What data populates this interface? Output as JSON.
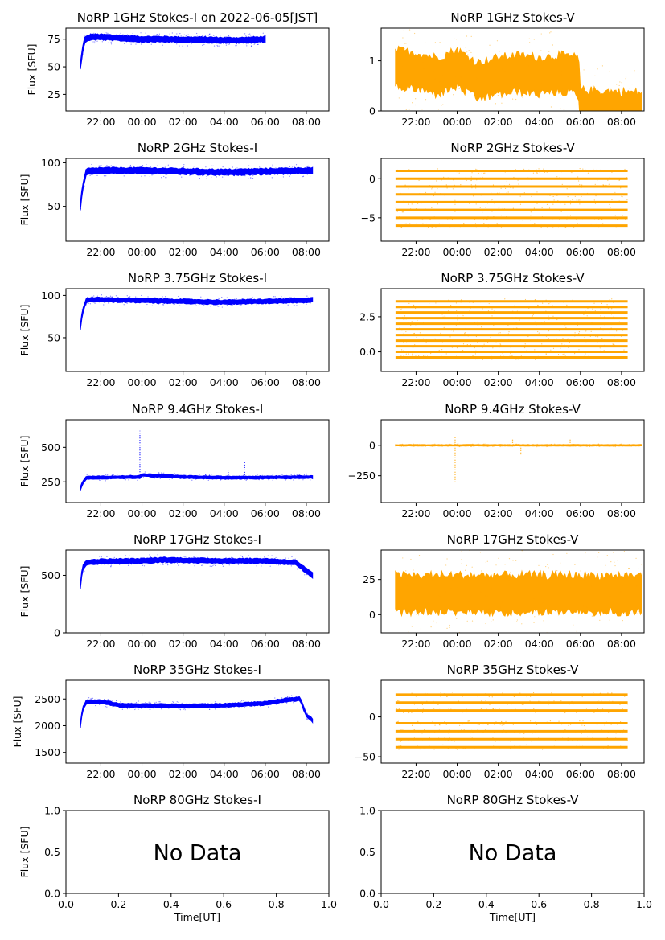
{
  "figure": {
    "time_ticks": [
      "22:00",
      "00:00",
      "02:00",
      "04:00",
      "06:00",
      "08:00"
    ],
    "xlabel": "Time[UT]",
    "ylabel": "Flux [SFU]",
    "no_data_text": "No Data"
  },
  "chart_data": [
    {
      "type": "scatter",
      "title": "NoRP 1GHz Stokes-I on 2022-06-05[JST]",
      "color": "#0000ff",
      "ylabel": "Flux [SFU]",
      "xlim": [
        20.3,
        33.1
      ],
      "ylim": [
        10,
        85
      ],
      "yticks": [
        25,
        50,
        75
      ],
      "time_end": 30.0,
      "points": [
        [
          21.0,
          50
        ],
        [
          21.1,
          64
        ],
        [
          21.2,
          74
        ],
        [
          21.5,
          77
        ],
        [
          22.0,
          77
        ],
        [
          23.0,
          76
        ],
        [
          24.0,
          75
        ],
        [
          25.0,
          75
        ],
        [
          26.0,
          74.5
        ],
        [
          27.0,
          74.5
        ],
        [
          28.0,
          74
        ],
        [
          29.0,
          74
        ],
        [
          30.0,
          75
        ]
      ],
      "band": 3
    },
    {
      "type": "scatter",
      "title": "NoRP 1GHz Stokes-V",
      "color": "#ffa500",
      "xlim": [
        20.3,
        33.1
      ],
      "ylim": [
        0,
        1.65
      ],
      "yticks": [
        0,
        1
      ],
      "time_end": 29.9,
      "points": [
        [
          21.0,
          0.85
        ],
        [
          22.0,
          0.8
        ],
        [
          23.0,
          0.7
        ],
        [
          24.0,
          0.85
        ],
        [
          25.0,
          0.6
        ],
        [
          26.0,
          0.7
        ],
        [
          27.0,
          0.75
        ],
        [
          28.0,
          0.7
        ],
        [
          29.0,
          0.75
        ],
        [
          29.9,
          0.7
        ],
        [
          30.0,
          0.05
        ],
        [
          33.0,
          0.0
        ]
      ],
      "band": 0.45
    },
    {
      "type": "scatter",
      "title": "NoRP 2GHz Stokes-I",
      "color": "#0000ff",
      "ylabel": "Flux [SFU]",
      "xlim": [
        20.3,
        33.1
      ],
      "ylim": [
        10,
        105
      ],
      "yticks": [
        50,
        100
      ],
      "time_end": 32.3,
      "points": [
        [
          21.0,
          49
        ],
        [
          21.1,
          70
        ],
        [
          21.3,
          90
        ],
        [
          22.0,
          91
        ],
        [
          24.0,
          91
        ],
        [
          26.0,
          90
        ],
        [
          28.0,
          89
        ],
        [
          30.0,
          90
        ],
        [
          32.0,
          91
        ],
        [
          32.3,
          91
        ]
      ],
      "band": 4
    },
    {
      "type": "scatter",
      "title": "NoRP 2GHz Stokes-V",
      "color": "#ffa500",
      "xlim": [
        20.3,
        33.1
      ],
      "ylim": [
        -8,
        2.6
      ],
      "yticks": [
        0,
        -5
      ],
      "time_end": 32.3,
      "levels": [
        1,
        0,
        -1,
        -2,
        -3,
        -4,
        -5,
        -6
      ]
    },
    {
      "type": "scatter",
      "title": "NoRP 3.75GHz Stokes-I",
      "color": "#0000ff",
      "ylabel": "Flux [SFU]",
      "xlim": [
        20.3,
        33.1
      ],
      "ylim": [
        10,
        108
      ],
      "yticks": [
        50,
        100
      ],
      "time_end": 32.3,
      "points": [
        [
          21.0,
          62
        ],
        [
          21.1,
          80
        ],
        [
          21.3,
          95
        ],
        [
          22.0,
          95
        ],
        [
          24.0,
          94
        ],
        [
          26.0,
          93
        ],
        [
          28.0,
          92
        ],
        [
          30.0,
          93
        ],
        [
          32.0,
          94
        ],
        [
          32.3,
          95
        ]
      ],
      "band": 3
    },
    {
      "type": "scatter",
      "title": "NoRP 3.75GHz Stokes-V",
      "color": "#ffa500",
      "xlim": [
        20.3,
        33.1
      ],
      "ylim": [
        -1.4,
        4.5
      ],
      "yticks": [
        0.0,
        2.5
      ],
      "time_end": 32.3,
      "levels": [
        3.6,
        3.2,
        2.8,
        2.4,
        2.0,
        1.6,
        1.2,
        0.8,
        0.4,
        0.0,
        -0.4
      ]
    },
    {
      "type": "scatter",
      "title": "NoRP 9.4GHz Stokes-I",
      "color": "#0000ff",
      "ylabel": "Flux [SFU]",
      "xlim": [
        20.3,
        33.1
      ],
      "ylim": [
        100,
        700
      ],
      "yticks": [
        250,
        500
      ],
      "time_end": 32.3,
      "points": [
        [
          21.0,
          200
        ],
        [
          21.1,
          240
        ],
        [
          21.3,
          280
        ],
        [
          23.9,
          285
        ],
        [
          24.0,
          300
        ],
        [
          26.0,
          285
        ],
        [
          28.0,
          280
        ],
        [
          30.0,
          282
        ],
        [
          32.3,
          285
        ]
      ],
      "band": 12,
      "spikes": [
        [
          23.9,
          620
        ],
        [
          25.6,
          320
        ],
        [
          27.1,
          310
        ],
        [
          28.2,
          350
        ],
        [
          29.0,
          400
        ]
      ]
    },
    {
      "type": "scatter",
      "title": "NoRP 9.4GHz Stokes-V",
      "color": "#ffa500",
      "xlim": [
        20.3,
        33.1
      ],
      "ylim": [
        -470,
        210
      ],
      "yticks": [
        0,
        -250
      ],
      "time_end": 32.5,
      "points": [
        [
          21.0,
          0
        ],
        [
          33.0,
          0
        ]
      ],
      "band": 6,
      "spikes": [
        [
          23.9,
          -310
        ],
        [
          23.9,
          80
        ],
        [
          26.7,
          60
        ],
        [
          27.1,
          -80
        ],
        [
          29.5,
          50
        ]
      ]
    },
    {
      "type": "scatter",
      "title": "NoRP 17GHz Stokes-I",
      "color": "#0000ff",
      "ylabel": "Flux [SFU]",
      "xlim": [
        20.3,
        33.1
      ],
      "ylim": [
        0,
        720
      ],
      "yticks": [
        0,
        500
      ],
      "time_end": 32.3,
      "points": [
        [
          21.0,
          400
        ],
        [
          21.1,
          560
        ],
        [
          21.3,
          610
        ],
        [
          22.0,
          620
        ],
        [
          24.0,
          625
        ],
        [
          25.0,
          635
        ],
        [
          26.0,
          630
        ],
        [
          28.0,
          625
        ],
        [
          30.0,
          625
        ],
        [
          31.5,
          610
        ],
        [
          32.0,
          540
        ],
        [
          32.3,
          500
        ]
      ],
      "band": 25
    },
    {
      "type": "scatter",
      "title": "NoRP 17GHz Stokes-V",
      "color": "#ffa500",
      "xlim": [
        20.3,
        33.1
      ],
      "ylim": [
        -13,
        46
      ],
      "yticks": [
        0,
        25
      ],
      "time_end": 32.3,
      "points": [
        [
          21.0,
          15
        ],
        [
          33.0,
          15
        ]
      ],
      "band": 16
    },
    {
      "type": "scatter",
      "title": "NoRP 35GHz Stokes-I",
      "color": "#0000ff",
      "ylabel": "Flux [SFU]",
      "xlim": [
        20.3,
        33.1
      ],
      "ylim": [
        1300,
        2850
      ],
      "yticks": [
        1500,
        2000,
        2500
      ],
      "time_end": 32.3,
      "points": [
        [
          21.0,
          2000
        ],
        [
          21.1,
          2300
        ],
        [
          21.3,
          2450
        ],
        [
          22.0,
          2450
        ],
        [
          23.0,
          2380
        ],
        [
          24.0,
          2380
        ],
        [
          26.0,
          2370
        ],
        [
          28.0,
          2380
        ],
        [
          30.0,
          2420
        ],
        [
          31.0,
          2480
        ],
        [
          31.7,
          2500
        ],
        [
          32.0,
          2200
        ],
        [
          32.3,
          2100
        ]
      ],
      "band": 40
    },
    {
      "type": "scatter",
      "title": "NoRP 35GHz Stokes-V",
      "color": "#ffa500",
      "xlim": [
        20.3,
        33.1
      ],
      "ylim": [
        -58,
        46
      ],
      "yticks": [
        0,
        -50
      ],
      "time_end": 32.3,
      "levels": [
        28,
        18,
        8,
        -8,
        -18,
        -28,
        -38
      ]
    },
    {
      "type": "empty",
      "title": "NoRP 80GHz Stokes-I",
      "ylabel": "Flux [SFU]",
      "xlabel": "Time[UT]",
      "xlim": [
        0,
        1
      ],
      "ylim": [
        0,
        1
      ],
      "xticks": [
        "0.0",
        "0.2",
        "0.4",
        "0.6",
        "0.8",
        "1.0"
      ],
      "yticks": [
        "0.0",
        "0.5",
        "1.0"
      ]
    },
    {
      "type": "empty",
      "title": "NoRP 80GHz Stokes-V",
      "xlabel": "Time[UT]",
      "xlim": [
        0,
        1
      ],
      "ylim": [
        0,
        1
      ],
      "xticks": [
        "0.0",
        "0.2",
        "0.4",
        "0.6",
        "0.8",
        "1.0"
      ],
      "yticks": [
        "0.0",
        "0.5",
        "1.0"
      ]
    }
  ]
}
